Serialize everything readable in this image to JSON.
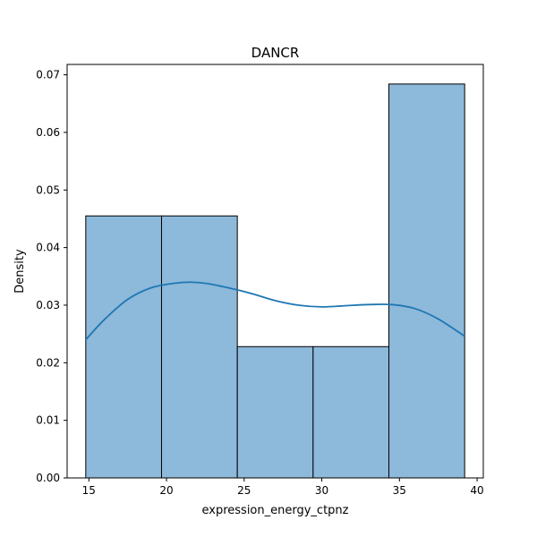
{
  "chart_data": {
    "type": "bar",
    "title": "DANCR",
    "xlabel": "expression_energy_ctpnz",
    "ylabel": "Density",
    "xlim": [
      13.6,
      40.4
    ],
    "ylim": [
      0,
      0.0718
    ],
    "xticks": [
      15,
      20,
      25,
      30,
      35,
      40
    ],
    "yticks": [
      0.0,
      0.01,
      0.02,
      0.03,
      0.04,
      0.05,
      0.06,
      0.07
    ],
    "ytick_labels": [
      "0.00",
      "0.01",
      "0.02",
      "0.03",
      "0.04",
      "0.05",
      "0.06",
      "0.07"
    ],
    "bins": [
      {
        "x0": 14.8,
        "x1": 19.68,
        "density": 0.0455
      },
      {
        "x0": 19.68,
        "x1": 24.56,
        "density": 0.0455
      },
      {
        "x0": 24.56,
        "x1": 29.44,
        "density": 0.0228
      },
      {
        "x0": 29.44,
        "x1": 34.32,
        "density": 0.0228
      },
      {
        "x0": 34.32,
        "x1": 39.2,
        "density": 0.0684
      }
    ],
    "kde": {
      "x": [
        14.8,
        16.0,
        17.5,
        19.0,
        20.5,
        21.5,
        22.5,
        24.0,
        25.5,
        27.0,
        28.5,
        30.0,
        31.5,
        33.0,
        34.5,
        36.0,
        37.5,
        39.2
      ],
      "y": [
        0.024,
        0.0275,
        0.031,
        0.033,
        0.0338,
        0.034,
        0.0338,
        0.033,
        0.032,
        0.0308,
        0.03,
        0.0297,
        0.0299,
        0.0301,
        0.0301,
        0.0294,
        0.0276,
        0.0246
      ]
    },
    "bar_fill": "#8db9da",
    "bar_edge": "#000000",
    "kde_color": "#1f77b4",
    "grid": false,
    "legend": "none"
  }
}
